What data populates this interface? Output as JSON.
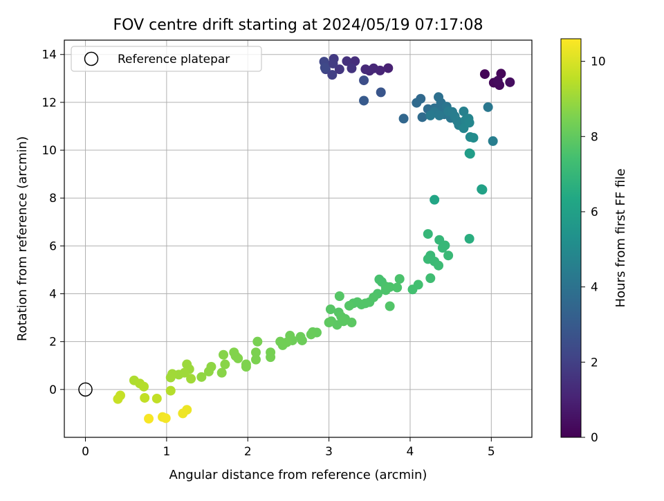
{
  "chart_data": {
    "type": "scatter",
    "title": "FOV centre drift starting at 2024/05/19 07:17:08",
    "xlabel": "Angular distance from reference (arcmin)",
    "ylabel": "Rotation from reference (arcmin)",
    "xlim": [
      -0.26,
      5.5
    ],
    "ylim": [
      -2.0,
      14.6
    ],
    "xticks": [
      "0",
      "1",
      "2",
      "3",
      "4",
      "5"
    ],
    "yticks": [
      "0",
      "2",
      "4",
      "6",
      "8",
      "10",
      "12",
      "14"
    ],
    "grid": true,
    "legend": {
      "position": "top-left",
      "entries": [
        {
          "label": "Reference platepar",
          "marker": "open-circle"
        }
      ]
    },
    "reference_point": {
      "x": 0,
      "y": 0
    },
    "colorbar": {
      "label": "Hours from first FF file",
      "colormap": "viridis",
      "range": [
        0,
        10.6
      ],
      "ticks": [
        "0",
        "2",
        "4",
        "6",
        "8",
        "10"
      ]
    },
    "points": [
      {
        "x": 4.92,
        "y": 13.18,
        "h": 0.1
      },
      {
        "x": 5.12,
        "y": 13.2,
        "h": 0.15
      },
      {
        "x": 5.03,
        "y": 12.82,
        "h": 0.2
      },
      {
        "x": 5.1,
        "y": 12.72,
        "h": 0.25
      },
      {
        "x": 5.08,
        "y": 12.9,
        "h": 0.3
      },
      {
        "x": 5.23,
        "y": 12.84,
        "h": 0.35
      },
      {
        "x": 3.73,
        "y": 13.43,
        "h": 1.0
      },
      {
        "x": 3.63,
        "y": 13.33,
        "h": 1.1
      },
      {
        "x": 3.55,
        "y": 13.42,
        "h": 1.15
      },
      {
        "x": 3.5,
        "y": 13.32,
        "h": 1.2
      },
      {
        "x": 3.45,
        "y": 13.38,
        "h": 1.25
      },
      {
        "x": 3.32,
        "y": 13.72,
        "h": 1.4
      },
      {
        "x": 3.22,
        "y": 13.72,
        "h": 1.5
      },
      {
        "x": 3.28,
        "y": 13.42,
        "h": 1.6
      },
      {
        "x": 3.13,
        "y": 13.38,
        "h": 1.7
      },
      {
        "x": 3.06,
        "y": 13.82,
        "h": 1.8
      },
      {
        "x": 3.05,
        "y": 13.62,
        "h": 1.9
      },
      {
        "x": 3.04,
        "y": 13.15,
        "h": 2.0
      },
      {
        "x": 2.96,
        "y": 13.38,
        "h": 2.1
      },
      {
        "x": 2.94,
        "y": 13.7,
        "h": 2.2
      },
      {
        "x": 2.95,
        "y": 13.45,
        "h": 2.3
      },
      {
        "x": 3.43,
        "y": 12.92,
        "h": 2.5
      },
      {
        "x": 3.64,
        "y": 12.42,
        "h": 2.8
      },
      {
        "x": 3.43,
        "y": 12.07,
        "h": 3.0
      },
      {
        "x": 3.92,
        "y": 11.32,
        "h": 3.5
      },
      {
        "x": 4.13,
        "y": 12.15,
        "h": 3.6
      },
      {
        "x": 4.08,
        "y": 11.98,
        "h": 3.65
      },
      {
        "x": 4.15,
        "y": 11.38,
        "h": 3.7
      },
      {
        "x": 4.22,
        "y": 11.72,
        "h": 3.75
      },
      {
        "x": 4.26,
        "y": 11.55,
        "h": 3.8
      },
      {
        "x": 4.3,
        "y": 11.75,
        "h": 3.85
      },
      {
        "x": 4.35,
        "y": 12.22,
        "h": 3.9
      },
      {
        "x": 4.38,
        "y": 11.98,
        "h": 3.95
      },
      {
        "x": 4.4,
        "y": 11.7,
        "h": 4.0
      },
      {
        "x": 4.42,
        "y": 11.5,
        "h": 4.05
      },
      {
        "x": 4.45,
        "y": 11.82,
        "h": 4.1
      },
      {
        "x": 4.5,
        "y": 11.35,
        "h": 4.15
      },
      {
        "x": 4.3,
        "y": 11.6,
        "h": 4.2
      },
      {
        "x": 4.36,
        "y": 11.45,
        "h": 4.25
      },
      {
        "x": 4.25,
        "y": 11.45,
        "h": 4.3
      },
      {
        "x": 4.47,
        "y": 11.62,
        "h": 4.35
      },
      {
        "x": 4.52,
        "y": 11.6,
        "h": 4.4
      },
      {
        "x": 4.55,
        "y": 11.42,
        "h": 4.45
      },
      {
        "x": 4.58,
        "y": 11.22,
        "h": 4.5
      },
      {
        "x": 4.6,
        "y": 11.05,
        "h": 4.55
      },
      {
        "x": 4.66,
        "y": 11.62,
        "h": 4.6
      },
      {
        "x": 4.68,
        "y": 11.25,
        "h": 4.7
      },
      {
        "x": 4.72,
        "y": 11.32,
        "h": 4.75
      },
      {
        "x": 4.66,
        "y": 10.92,
        "h": 4.8
      },
      {
        "x": 4.73,
        "y": 11.15,
        "h": 4.85
      },
      {
        "x": 4.96,
        "y": 11.8,
        "h": 4.2
      },
      {
        "x": 5.02,
        "y": 10.38,
        "h": 4.5
      },
      {
        "x": 4.74,
        "y": 10.55,
        "h": 5.0
      },
      {
        "x": 4.78,
        "y": 10.52,
        "h": 5.1
      },
      {
        "x": 4.73,
        "y": 9.87,
        "h": 5.8
      },
      {
        "x": 4.74,
        "y": 9.85,
        "h": 5.85
      },
      {
        "x": 4.88,
        "y": 8.37,
        "h": 6.0
      },
      {
        "x": 4.89,
        "y": 8.35,
        "h": 6.05
      },
      {
        "x": 4.3,
        "y": 7.93,
        "h": 6.2
      },
      {
        "x": 4.73,
        "y": 6.3,
        "h": 6.6
      },
      {
        "x": 4.22,
        "y": 6.5,
        "h": 7.0
      },
      {
        "x": 4.36,
        "y": 6.25,
        "h": 7.0
      },
      {
        "x": 4.43,
        "y": 6.02,
        "h": 7.05
      },
      {
        "x": 4.4,
        "y": 5.92,
        "h": 7.05
      },
      {
        "x": 4.25,
        "y": 5.6,
        "h": 7.1
      },
      {
        "x": 4.47,
        "y": 5.6,
        "h": 7.1
      },
      {
        "x": 4.22,
        "y": 5.45,
        "h": 7.15
      },
      {
        "x": 4.3,
        "y": 5.35,
        "h": 7.15
      },
      {
        "x": 4.35,
        "y": 5.18,
        "h": 7.2
      },
      {
        "x": 4.25,
        "y": 4.65,
        "h": 7.3
      },
      {
        "x": 4.1,
        "y": 4.38,
        "h": 7.4
      },
      {
        "x": 4.03,
        "y": 4.18,
        "h": 7.4
      },
      {
        "x": 3.62,
        "y": 4.6,
        "h": 7.5
      },
      {
        "x": 3.65,
        "y": 4.5,
        "h": 7.5
      },
      {
        "x": 3.87,
        "y": 4.62,
        "h": 7.55
      },
      {
        "x": 3.7,
        "y": 4.3,
        "h": 7.55
      },
      {
        "x": 3.75,
        "y": 4.28,
        "h": 7.6
      },
      {
        "x": 3.84,
        "y": 4.26,
        "h": 7.6
      },
      {
        "x": 3.7,
        "y": 4.15,
        "h": 7.6
      },
      {
        "x": 3.6,
        "y": 4.0,
        "h": 7.6
      },
      {
        "x": 3.55,
        "y": 3.85,
        "h": 7.65
      },
      {
        "x": 3.5,
        "y": 3.65,
        "h": 7.65
      },
      {
        "x": 3.45,
        "y": 3.6,
        "h": 7.7
      },
      {
        "x": 3.4,
        "y": 3.55,
        "h": 7.7
      },
      {
        "x": 3.35,
        "y": 3.65,
        "h": 7.7
      },
      {
        "x": 3.3,
        "y": 3.6,
        "h": 7.7
      },
      {
        "x": 3.25,
        "y": 3.5,
        "h": 7.75
      },
      {
        "x": 3.75,
        "y": 3.48,
        "h": 7.7
      },
      {
        "x": 3.13,
        "y": 3.9,
        "h": 7.75
      },
      {
        "x": 3.02,
        "y": 3.35,
        "h": 7.8
      },
      {
        "x": 3.12,
        "y": 3.22,
        "h": 7.8
      },
      {
        "x": 3.15,
        "y": 3.05,
        "h": 7.85
      },
      {
        "x": 3.2,
        "y": 2.95,
        "h": 7.85
      },
      {
        "x": 3.03,
        "y": 2.85,
        "h": 7.9
      },
      {
        "x": 3.1,
        "y": 2.7,
        "h": 7.9
      },
      {
        "x": 3.18,
        "y": 2.85,
        "h": 7.9
      },
      {
        "x": 3.28,
        "y": 2.8,
        "h": 7.9
      },
      {
        "x": 3.0,
        "y": 2.8,
        "h": 7.95
      },
      {
        "x": 2.8,
        "y": 2.4,
        "h": 8.1
      },
      {
        "x": 2.85,
        "y": 2.38,
        "h": 8.1
      },
      {
        "x": 2.78,
        "y": 2.3,
        "h": 8.15
      },
      {
        "x": 2.65,
        "y": 2.2,
        "h": 8.2
      },
      {
        "x": 2.67,
        "y": 2.05,
        "h": 8.2
      },
      {
        "x": 2.52,
        "y": 2.25,
        "h": 8.25
      },
      {
        "x": 2.55,
        "y": 2.05,
        "h": 8.25
      },
      {
        "x": 2.48,
        "y": 1.97,
        "h": 8.3
      },
      {
        "x": 2.43,
        "y": 1.85,
        "h": 8.3
      },
      {
        "x": 2.4,
        "y": 2.0,
        "h": 8.3
      },
      {
        "x": 2.28,
        "y": 1.55,
        "h": 8.4
      },
      {
        "x": 2.28,
        "y": 1.35,
        "h": 8.4
      },
      {
        "x": 2.12,
        "y": 2.0,
        "h": 8.45
      },
      {
        "x": 2.1,
        "y": 1.55,
        "h": 8.5
      },
      {
        "x": 2.1,
        "y": 1.25,
        "h": 8.5
      },
      {
        "x": 1.98,
        "y": 1.05,
        "h": 8.55
      },
      {
        "x": 1.98,
        "y": 0.95,
        "h": 8.55
      },
      {
        "x": 1.88,
        "y": 1.3,
        "h": 8.6
      },
      {
        "x": 1.85,
        "y": 1.4,
        "h": 8.6
      },
      {
        "x": 1.83,
        "y": 1.55,
        "h": 8.6
      },
      {
        "x": 1.7,
        "y": 1.45,
        "h": 8.65
      },
      {
        "x": 1.72,
        "y": 1.05,
        "h": 8.7
      },
      {
        "x": 1.68,
        "y": 0.7,
        "h": 8.7
      },
      {
        "x": 1.55,
        "y": 0.95,
        "h": 8.8
      },
      {
        "x": 1.52,
        "y": 0.75,
        "h": 8.8
      },
      {
        "x": 1.43,
        "y": 0.52,
        "h": 8.85
      },
      {
        "x": 1.25,
        "y": 1.05,
        "h": 9.0
      },
      {
        "x": 1.28,
        "y": 0.85,
        "h": 9.0
      },
      {
        "x": 1.22,
        "y": 0.7,
        "h": 9.05
      },
      {
        "x": 1.15,
        "y": 0.62,
        "h": 9.05
      },
      {
        "x": 1.07,
        "y": 0.65,
        "h": 9.1
      },
      {
        "x": 1.05,
        "y": 0.5,
        "h": 9.1
      },
      {
        "x": 1.3,
        "y": 0.45,
        "h": 9.1
      },
      {
        "x": 0.6,
        "y": 0.38,
        "h": 9.3
      },
      {
        "x": 0.67,
        "y": 0.25,
        "h": 9.35
      },
      {
        "x": 0.72,
        "y": 0.12,
        "h": 9.4
      },
      {
        "x": 1.05,
        "y": -0.05,
        "h": 9.4
      },
      {
        "x": 0.73,
        "y": -0.35,
        "h": 9.6
      },
      {
        "x": 0.88,
        "y": -0.38,
        "h": 9.6
      },
      {
        "x": 0.43,
        "y": -0.25,
        "h": 9.65
      },
      {
        "x": 0.4,
        "y": -0.4,
        "h": 9.7
      },
      {
        "x": 1.25,
        "y": -0.85,
        "h": 10.3
      },
      {
        "x": 1.2,
        "y": -1.0,
        "h": 10.35
      },
      {
        "x": 0.95,
        "y": -1.15,
        "h": 10.4
      },
      {
        "x": 0.99,
        "y": -1.2,
        "h": 10.45
      },
      {
        "x": 0.78,
        "y": -1.22,
        "h": 10.5
      }
    ]
  }
}
